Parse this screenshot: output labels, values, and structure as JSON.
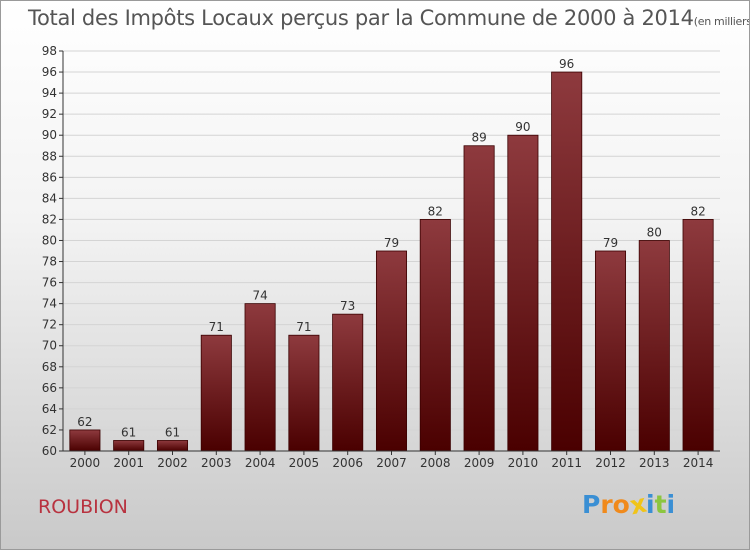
{
  "title": "Total des Impôts Locaux perçus par la Commune de 2000 à 2014",
  "subtitle": "(en milliers d'€)",
  "commune": "ROUBION",
  "logo": {
    "letters": [
      "P",
      "r",
      "o",
      "x",
      "i",
      "t",
      "i"
    ],
    "colors": [
      "#3a8fd4",
      "#f08a1c",
      "#f08a1c",
      "#f0c419",
      "#3a8fd4",
      "#8cc63f",
      "#3a8fd4"
    ]
  },
  "colors": {
    "bar_top": "#8e3a3e",
    "bar_bottom": "#4a0000",
    "bar_stroke": "#3a0000",
    "grid": "#d4d4d4",
    "axis": "#333333",
    "text": "#333333"
  },
  "chart_data": {
    "type": "bar",
    "title": "Total des Impôts Locaux perçus par la Commune de 2000 à 2014",
    "xlabel": "",
    "ylabel": "",
    "categories": [
      "2000",
      "2001",
      "2002",
      "2003",
      "2004",
      "2005",
      "2006",
      "2007",
      "2008",
      "2009",
      "2010",
      "2011",
      "2012",
      "2013",
      "2014"
    ],
    "values": [
      62,
      61,
      61,
      71,
      74,
      71,
      73,
      79,
      82,
      89,
      90,
      96,
      79,
      80,
      82
    ],
    "ylim": [
      60,
      98
    ],
    "yticks": [
      60,
      62,
      64,
      66,
      68,
      70,
      72,
      74,
      76,
      78,
      80,
      82,
      84,
      86,
      88,
      90,
      92,
      94,
      96,
      98
    ],
    "grid": true,
    "data_labels": true
  }
}
